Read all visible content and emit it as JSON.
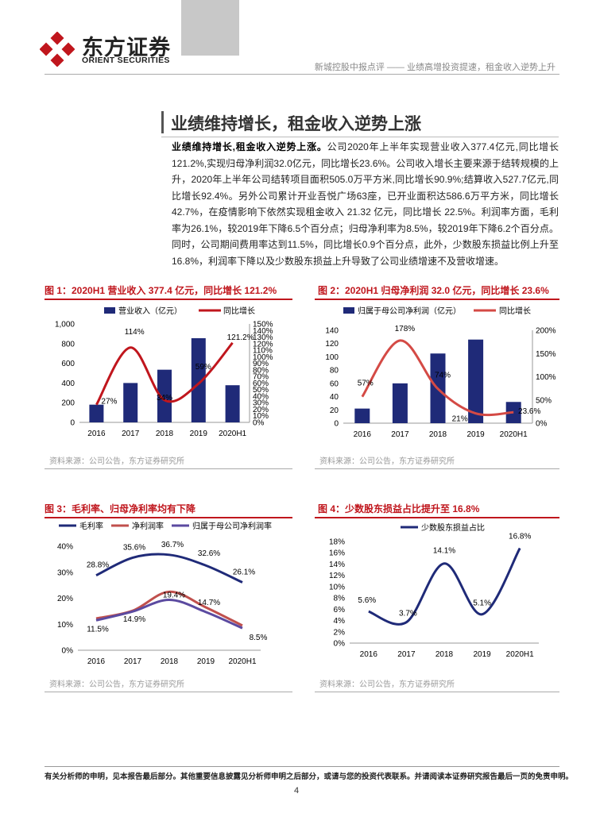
{
  "brand": {
    "name_cn": "东方证券",
    "name_en": "ORIENT SECURITIES",
    "logo_color": "#c0161d"
  },
  "header": {
    "text": "新城控股中报点评 —— 业绩高增投资提速，租金收入逆势上升"
  },
  "section": {
    "title": "业绩维持增长，租金收入逆势上涨",
    "lead": "业绩维持增长,租金收入逆势上涨。",
    "body": "公司2020年上半年实现营业收入377.4亿元,同比增长121.2%,实现归母净利润32.0亿元，同比增长23.6%。公司收入增长主要来源于结转规模的上升，2020年上半年公司结转项目面积505.0万平方米,同比增长90.9%;结算收入527.7亿元,同比增长92.4%。另外公司累计开业吾悦广场63座，已开业面积达586.6万平方米，同比增长42.7%，在疫情影响下依然实现租金收入 21.32 亿元，同比增长 22.5%。利润率方面，毛利率为26.1%，较2019年下降6.5个百分点；归母净利率为8.5%，较2019年下降6.2个百分点。同时，公司期间费用率达到11.5%，同比增长0.9个百分点，此外，少数股东损益比例上升至16.8%，利润率下降以及少数股东损益上升导致了公司业绩增速不及营收增速。"
  },
  "figures": {
    "fig1": {
      "title": "图 1：2020H1 营业收入 377.4 亿元，同比增长 121.2%",
      "legend_bar": "营业收入（亿元）",
      "legend_line": "同比增长",
      "source": "资料来源：公司公告，东方证券研究所"
    },
    "fig2": {
      "title": "图 2：2020H1 归母净利润 32.0 亿元，同比增长 23.6%",
      "legend_bar": "归属于母公司净利润（亿元）",
      "legend_line": "同比增长",
      "source": "资料来源：公司公告，东方证券研究所"
    },
    "fig3": {
      "title": "图 3：毛利率、归母净利率均有下降",
      "legend": [
        "毛利率",
        "净利润率",
        "归属于母公司净利润率"
      ],
      "source": "资料来源：公司公告，东方证券研究所"
    },
    "fig4": {
      "title": "图 4：少数股东损益占比提升至 16.8%",
      "legend": "少数股东损益占比",
      "source": "资料来源：公司公告，东方证券研究所"
    }
  },
  "chart_data": [
    {
      "id": "fig1",
      "type": "bar+line",
      "categories": [
        "2016",
        "2017",
        "2018",
        "2019",
        "2020H1"
      ],
      "series": [
        {
          "name": "营业收入（亿元）",
          "axis": "left",
          "values": [
            180,
            400,
            535,
            855,
            377.4
          ],
          "color": "#1f2a78"
        },
        {
          "name": "同比增长",
          "axis": "right",
          "values": [
            27,
            114,
            34,
            59,
            121.2
          ],
          "color": "#c0161d"
        }
      ],
      "data_labels": [
        "27%",
        "114%",
        "34%",
        "59%",
        "121.2%"
      ],
      "left_axis": {
        "ylim": [
          0,
          1000
        ],
        "ticks": [
          "0",
          "200",
          "400",
          "600",
          "800",
          "1,000"
        ]
      },
      "right_axis": {
        "ylim": [
          0,
          150
        ],
        "ticks": [
          "0%",
          "10%",
          "20%",
          "30%",
          "40%",
          "50%",
          "60%",
          "70%",
          "80%",
          "90%",
          "100%",
          "110%",
          "120%",
          "130%",
          "140%",
          "150%"
        ]
      }
    },
    {
      "id": "fig2",
      "type": "bar+line",
      "categories": [
        "2016",
        "2017",
        "2018",
        "2019",
        "2020H1"
      ],
      "series": [
        {
          "name": "归属于母公司净利润（亿元）",
          "axis": "left",
          "values": [
            22,
            60,
            105,
            126,
            32.0
          ],
          "color": "#1f2a78"
        },
        {
          "name": "同比增长",
          "axis": "right",
          "values": [
            57,
            178,
            74,
            21,
            23.6
          ],
          "color": "#d44a45"
        }
      ],
      "data_labels": [
        "57%",
        "178%",
        "74%",
        "21%",
        "23.6%"
      ],
      "left_axis": {
        "ylim": [
          0,
          140
        ],
        "ticks": [
          "0",
          "20",
          "40",
          "60",
          "80",
          "100",
          "120",
          "140"
        ]
      },
      "right_axis": {
        "ylim": [
          0,
          200
        ],
        "ticks": [
          "0%",
          "50%",
          "100%",
          "150%",
          "200%"
        ]
      }
    },
    {
      "id": "fig3",
      "type": "line",
      "categories": [
        "2016",
        "2017",
        "2018",
        "2019",
        "2020H1"
      ],
      "series": [
        {
          "name": "毛利率",
          "values": [
            28.8,
            35.6,
            36.7,
            32.6,
            26.1
          ],
          "color": "#1f2a78"
        },
        {
          "name": "净利润率",
          "values": [
            12.2,
            15.2,
            22.5,
            16.5,
            9.5
          ],
          "color": "#c0504d"
        },
        {
          "name": "归属于母公司净利润率",
          "values": [
            11.5,
            14.9,
            19.4,
            14.7,
            8.5
          ],
          "color": "#5b4aa0"
        }
      ],
      "data_labels": [
        "28.8%",
        "35.6%",
        "36.7%",
        "32.6%",
        "26.1%",
        "11.5%",
        "14.9%",
        "19.4%",
        "14.7%",
        "8.5%"
      ],
      "ylim": [
        0,
        40
      ],
      "ticks": [
        "0%",
        "10%",
        "20%",
        "30%",
        "40%"
      ]
    },
    {
      "id": "fig4",
      "type": "line",
      "categories": [
        "2016",
        "2017",
        "2018",
        "2019",
        "2020H1"
      ],
      "series": [
        {
          "name": "少数股东损益占比",
          "values": [
            5.6,
            3.7,
            14.1,
            5.1,
            16.8
          ],
          "color": "#1f2a78"
        }
      ],
      "data_labels": [
        "5.6%",
        "3.7%",
        "14.1%",
        "5.1%",
        "16.8%"
      ],
      "ylim": [
        0,
        18
      ],
      "ticks": [
        "0%",
        "2%",
        "4%",
        "6%",
        "8%",
        "10%",
        "12%",
        "14%",
        "16%",
        "18%"
      ]
    }
  ],
  "footer": {
    "disclaimer": "有关分析师的申明，见本报告最后部分。其他重要信息披露见分析师申明之后部分，或请与您的投资代表联系。并请阅读本证券研究报告最后一页的免责申明。",
    "page": "4"
  }
}
